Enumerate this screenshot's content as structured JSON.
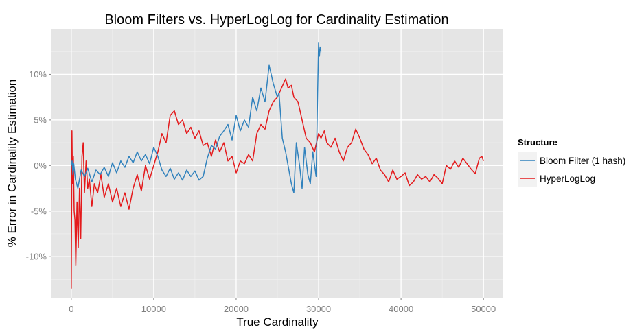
{
  "chart_data": {
    "type": "line",
    "title": "Bloom Filters vs. HyperLogLog for Cardinality Estimation",
    "xlabel": "True Cardinality",
    "ylabel": "% Error in Cardinality Estimation",
    "xlim": [
      -2400,
      52400
    ],
    "ylim": [
      -14.5,
      15
    ],
    "x_ticks": [
      0,
      10000,
      20000,
      30000,
      40000,
      50000
    ],
    "x_tick_labels": [
      "0",
      "10000",
      "20000",
      "30000",
      "40000",
      "50000"
    ],
    "y_ticks": [
      -10,
      -5,
      0,
      5,
      10
    ],
    "y_tick_labels": [
      "-10%",
      "-5%",
      "0%",
      "5%",
      "10%"
    ],
    "grid": true,
    "legend": {
      "title": "Structure",
      "position": "right",
      "entries": [
        "Bloom Filter (1 hash)",
        "HyperLogLog"
      ]
    },
    "series": [
      {
        "name": "Bloom Filter (1 hash)",
        "color": "#3182bd",
        "x": [
          0,
          100,
          200,
          300,
          500,
          800,
          1200,
          1600,
          2000,
          2500,
          3000,
          3500,
          4000,
          4500,
          5000,
          5500,
          6000,
          6500,
          7000,
          7500,
          8000,
          8500,
          9000,
          9500,
          10000,
          10500,
          11000,
          11500,
          12000,
          12500,
          13000,
          13500,
          14000,
          14500,
          15000,
          15500,
          16000,
          16500,
          17000,
          17500,
          18000,
          18500,
          19000,
          19500,
          20000,
          20500,
          21000,
          21500,
          22000,
          22500,
          23000,
          23500,
          24000,
          24500,
          25000,
          25200,
          25600,
          26000,
          26400,
          26700,
          27000,
          27300,
          27700,
          28000,
          28300,
          28700,
          29000,
          29300,
          29700,
          30000,
          30100,
          30200,
          30300
        ],
        "y": [
          0,
          0.5,
          -1,
          0.2,
          -1.5,
          -2.5,
          -0.5,
          -1.2,
          -0.3,
          -1.8,
          -0.5,
          -1,
          -0.2,
          -1.2,
          0.3,
          -0.8,
          0.5,
          -0.2,
          1,
          0.3,
          1.5,
          0.5,
          1.2,
          0.2,
          2,
          1,
          -0.5,
          -1.2,
          -0.3,
          -1.5,
          -0.8,
          -1.6,
          -0.5,
          -1.2,
          -0.6,
          -1.6,
          -1.2,
          0.8,
          2.2,
          1.8,
          3.2,
          3.8,
          4.5,
          2.8,
          5.5,
          3.8,
          5,
          4.2,
          7.5,
          6,
          8.5,
          7,
          11,
          9,
          7.5,
          8,
          3,
          1.5,
          -0.5,
          -2,
          -3,
          2.5,
          0,
          -2.5,
          2,
          -1,
          -2,
          1.5,
          -1.2,
          13.5,
          12,
          13,
          12.5
        ]
      },
      {
        "name": "HyperLogLog",
        "color": "#e41a1c",
        "x": [
          0,
          80,
          150,
          250,
          350,
          450,
          550,
          700,
          850,
          1000,
          1150,
          1300,
          1450,
          1600,
          1800,
          2000,
          2200,
          2500,
          2800,
          3200,
          3600,
          4000,
          4500,
          5000,
          5500,
          6000,
          6500,
          7000,
          7500,
          8000,
          8500,
          9000,
          9500,
          10000,
          10500,
          11000,
          11500,
          12000,
          12500,
          13000,
          13500,
          14000,
          14500,
          15000,
          15500,
          16000,
          16500,
          17000,
          17500,
          18000,
          18500,
          19000,
          19500,
          20000,
          20500,
          21000,
          21500,
          22000,
          22500,
          23000,
          23500,
          24000,
          24500,
          25000,
          25500,
          26000,
          26300,
          26700,
          27000,
          27500,
          28000,
          28500,
          29000,
          29500,
          30000,
          30300,
          30700,
          31000,
          31500,
          32000,
          32500,
          33000,
          33500,
          34000,
          34500,
          35000,
          35500,
          36000,
          36500,
          37000,
          37500,
          38000,
          38500,
          39000,
          39500,
          40000,
          40500,
          41000,
          41500,
          42000,
          42500,
          43000,
          43500,
          44000,
          44500,
          45000,
          45500,
          46000,
          46500,
          47000,
          47500,
          48000,
          48500,
          49000,
          49500,
          49800,
          50000
        ],
        "y": [
          -13.5,
          3.8,
          -2,
          1,
          -5,
          -6,
          -11,
          -4,
          -9,
          -2.5,
          -8,
          1,
          2.5,
          -3,
          0.5,
          -2.5,
          -1.5,
          -4.5,
          -2,
          -3,
          -1,
          -3.5,
          -2,
          -4,
          -2.5,
          -4.5,
          -3,
          -4.8,
          -2.5,
          -1,
          -2.8,
          0,
          -1.5,
          0,
          1.5,
          3.5,
          2.5,
          5.5,
          6,
          4.5,
          5,
          3.5,
          4.2,
          3,
          3.8,
          2.2,
          2.5,
          1,
          2.8,
          1.5,
          2.5,
          0.5,
          1,
          -0.8,
          0.5,
          0.2,
          1.2,
          0.5,
          3.5,
          4.5,
          4,
          6,
          7,
          7.5,
          8.5,
          9.5,
          8.5,
          8.8,
          7.5,
          7,
          5,
          3,
          2.5,
          1.5,
          3.5,
          3,
          3.8,
          2.5,
          2,
          3,
          1.5,
          0.5,
          2,
          2.5,
          4,
          3,
          1.8,
          1.2,
          0.2,
          0.8,
          -0.5,
          -1,
          -1.8,
          -0.5,
          -1.5,
          -1.2,
          -0.8,
          -2.2,
          -1.8,
          -1,
          -1.5,
          -1.2,
          -1.8,
          -1,
          -1.4,
          -2,
          0,
          -0.4,
          0.5,
          -0.2,
          0.8,
          0.2,
          -0.4,
          -0.9,
          0.8,
          1,
          0.5
        ],
        "comment_y_note": "values in percent"
      }
    ]
  }
}
